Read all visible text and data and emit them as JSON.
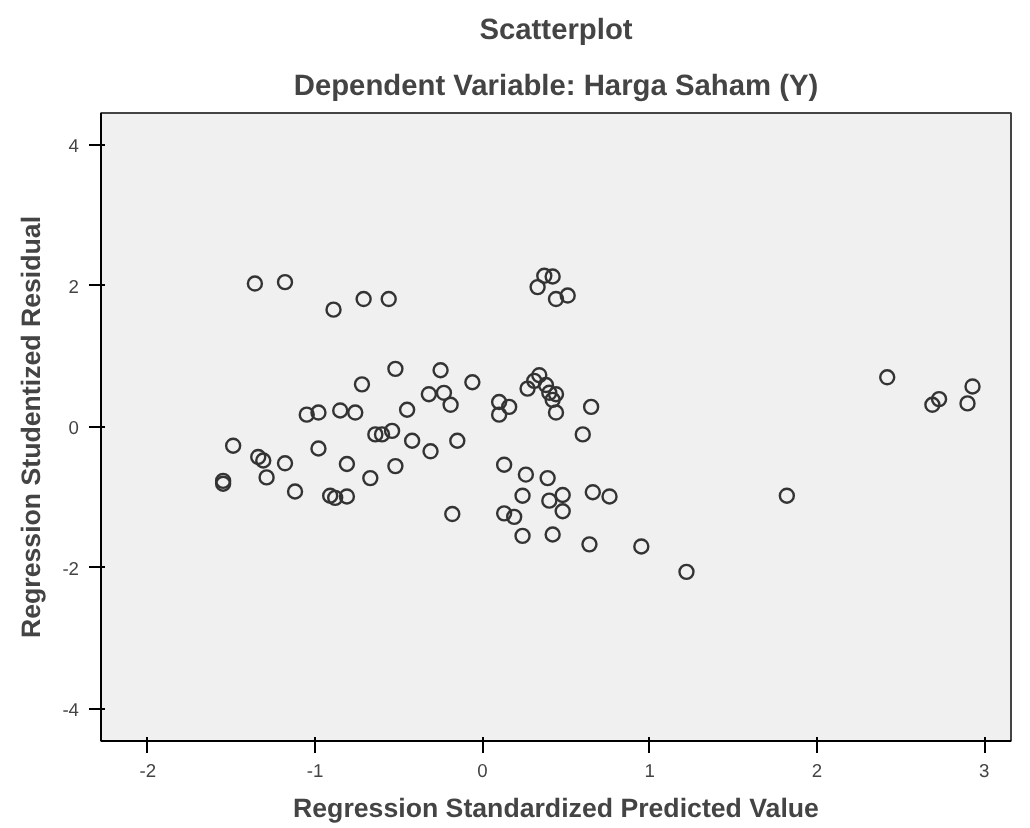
{
  "chart_data": {
    "type": "scatter",
    "title": "Scatterplot",
    "subtitle": "Dependent Variable: Harga Saham (Y)",
    "xlabel": "Regression Standardized Predicted Value",
    "ylabel": "Regression Studentized Residual",
    "marker": "circle",
    "grid": false,
    "xlim": [
      -2.28,
      3.16
    ],
    "ylim": [
      -4.46,
      4.45
    ],
    "xticks": [
      -2,
      -1,
      0,
      1,
      2,
      3
    ],
    "yticks": [
      -4,
      -2,
      0,
      2,
      4
    ],
    "series": [
      {
        "color": "#333333",
        "x": [
          -1.36,
          -1.18,
          -0.89,
          -0.71,
          -0.56,
          0.33,
          0.37,
          0.42,
          0.44,
          0.51,
          -0.52,
          -0.25,
          -0.06,
          -0.72,
          -0.32,
          -0.23,
          -0.19,
          -0.45,
          -1.05,
          -0.98,
          -0.85,
          -0.76,
          0.1,
          0.1,
          0.16,
          0.27,
          0.31,
          0.34,
          0.38,
          0.4,
          0.44,
          0.42,
          0.44,
          0.65,
          0.6,
          2.42,
          2.69,
          2.73,
          2.93,
          2.9,
          1.82,
          1.22,
          0.95,
          0.64,
          0.42,
          0.24,
          0.19,
          0.13,
          0.48,
          0.4,
          0.48,
          0.66,
          0.76,
          0.24,
          0.39,
          0.26,
          0.13,
          -0.18,
          -0.15,
          -0.42,
          -0.31,
          -0.54,
          -0.6,
          -0.64,
          -0.52,
          -0.67,
          -0.81,
          -0.81,
          -0.91,
          -0.88,
          -0.98,
          -1.12,
          -1.18,
          -1.29,
          -1.31,
          -1.34,
          -1.49,
          -1.55,
          -1.55
        ],
        "values": [
          2.03,
          2.05,
          1.66,
          1.81,
          1.81,
          1.98,
          2.14,
          2.13,
          1.81,
          1.86,
          0.82,
          0.8,
          0.63,
          0.6,
          0.46,
          0.48,
          0.31,
          0.24,
          0.17,
          0.2,
          0.23,
          0.2,
          0.35,
          0.17,
          0.28,
          0.54,
          0.65,
          0.73,
          0.59,
          0.48,
          0.46,
          0.38,
          0.2,
          0.28,
          -0.11,
          0.7,
          0.31,
          0.39,
          0.57,
          0.33,
          -0.98,
          -2.06,
          -1.7,
          -1.67,
          -1.53,
          -1.55,
          -1.28,
          -1.23,
          -1.2,
          -1.05,
          -0.97,
          -0.93,
          -0.99,
          -0.98,
          -0.73,
          -0.68,
          -0.54,
          -1.24,
          -0.2,
          -0.2,
          -0.35,
          -0.06,
          -0.11,
          -0.11,
          -0.56,
          -0.73,
          -0.53,
          -0.99,
          -0.98,
          -1.01,
          -0.31,
          -0.92,
          -0.52,
          -0.72,
          -0.48,
          -0.43,
          -0.27,
          -0.77,
          -0.81
        ]
      }
    ]
  }
}
